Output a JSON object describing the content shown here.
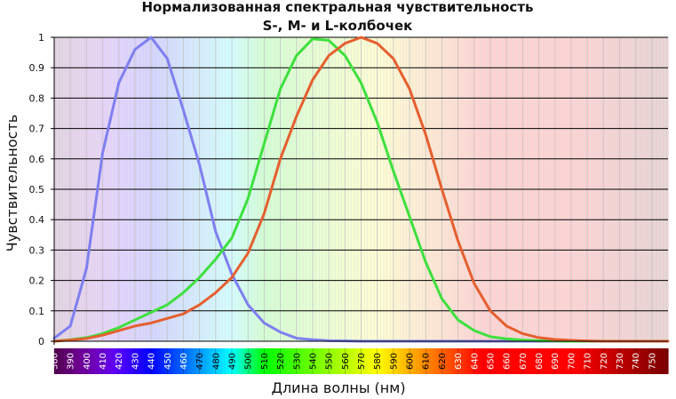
{
  "chart_data": {
    "type": "line",
    "title": "Нормализованная спектральная чувствительность",
    "subtitle": "S-, M- и L-колбочек",
    "xlabel": "Длина волны (нм)",
    "ylabel": "Чувствительность",
    "xlim": [
      380,
      760
    ],
    "ylim": [
      0,
      1
    ],
    "yticks": [
      0,
      0.1,
      0.2,
      0.3,
      0.4,
      0.5,
      0.6,
      0.7,
      0.8,
      0.9,
      1
    ],
    "ytick_labels": [
      "0",
      "0.1",
      "0.2",
      "0.3",
      "0.4",
      "0.5",
      "0.6",
      "0.7",
      "0.8",
      "0.9",
      "1"
    ],
    "xticks": [
      380,
      390,
      400,
      410,
      420,
      430,
      440,
      450,
      460,
      470,
      480,
      490,
      500,
      510,
      520,
      530,
      540,
      550,
      560,
      570,
      580,
      590,
      600,
      610,
      620,
      630,
      640,
      650,
      660,
      670,
      680,
      690,
      700,
      710,
      720,
      730,
      740,
      750
    ],
    "xtick_labels": [
      "380",
      "390",
      "400",
      "410",
      "420",
      "430",
      "440",
      "450",
      "460",
      "470",
      "480",
      "490",
      "500",
      "510",
      "520",
      "530",
      "540",
      "550",
      "560",
      "570",
      "580",
      "590",
      "600",
      "610",
      "620",
      "630",
      "640",
      "650",
      "660",
      "670",
      "680",
      "690",
      "700",
      "710",
      "720",
      "730",
      "740",
      "750"
    ],
    "grid": true,
    "colors": {
      "s_cone": "#7f7ff0",
      "m_cone": "#3ee03e",
      "l_cone": "#e55f2f"
    },
    "x": [
      380,
      390,
      400,
      410,
      420,
      430,
      440,
      450,
      460,
      470,
      480,
      490,
      500,
      510,
      520,
      530,
      540,
      550,
      560,
      570,
      580,
      590,
      600,
      610,
      620,
      630,
      640,
      650,
      660,
      670,
      680,
      690,
      700,
      710,
      720,
      730,
      740,
      750,
      760
    ],
    "series": [
      {
        "key": "s_cone",
        "values": [
          0.01,
          0.05,
          0.24,
          0.62,
          0.85,
          0.96,
          1.0,
          0.93,
          0.76,
          0.58,
          0.36,
          0.22,
          0.12,
          0.06,
          0.03,
          0.01,
          0.005,
          0.002,
          0.001,
          0,
          0,
          0,
          0,
          0,
          0,
          0,
          0,
          0,
          0,
          0,
          0,
          0,
          0,
          0,
          0,
          0,
          0,
          0,
          0
        ]
      },
      {
        "key": "m_cone",
        "values": [
          0,
          0.005,
          0.012,
          0.025,
          0.045,
          0.07,
          0.095,
          0.12,
          0.16,
          0.21,
          0.27,
          0.34,
          0.47,
          0.65,
          0.83,
          0.94,
          0.995,
          0.99,
          0.94,
          0.85,
          0.72,
          0.56,
          0.41,
          0.26,
          0.14,
          0.07,
          0.035,
          0.015,
          0.008,
          0.004,
          0.002,
          0.001,
          0,
          0,
          0,
          0,
          0,
          0,
          0
        ]
      },
      {
        "key": "l_cone",
        "values": [
          0,
          0.004,
          0.009,
          0.02,
          0.035,
          0.05,
          0.06,
          0.075,
          0.09,
          0.12,
          0.16,
          0.21,
          0.29,
          0.42,
          0.6,
          0.74,
          0.86,
          0.94,
          0.98,
          1.0,
          0.98,
          0.93,
          0.83,
          0.68,
          0.5,
          0.33,
          0.19,
          0.1,
          0.05,
          0.025,
          0.012,
          0.006,
          0.003,
          0.001,
          0,
          0,
          0,
          0,
          0
        ]
      }
    ]
  }
}
